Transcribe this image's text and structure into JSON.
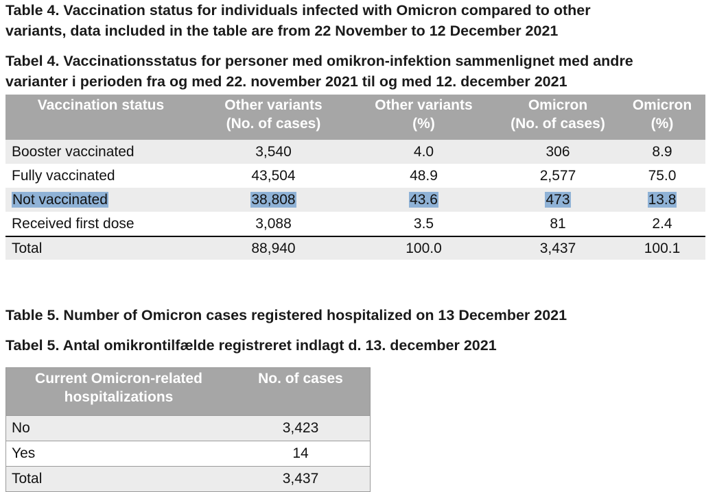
{
  "table4": {
    "title_en": "Table 4. Vaccination status for individuals infected with Omicron compared to other",
    "title_en_line2": "variants, data included in the table are from 22 November to 12 December 2021",
    "title_da": "Tabel 4. Vaccinationsstatus for personer med omikron-infektion sammenlignet med andre",
    "title_da_line2": "varianter i perioden fra og med 22. november 2021 til og med 12. december 2021",
    "headers": [
      [
        "Vaccination status",
        ""
      ],
      [
        "Other variants",
        "(No. of cases)"
      ],
      [
        "Other variants",
        "(%)"
      ],
      [
        "Omicron",
        "(No. of cases)"
      ],
      [
        "Omicron",
        "(%)"
      ]
    ],
    "rows": [
      [
        "Booster vaccinated",
        "3,540",
        "4.0",
        "306",
        "8.9"
      ],
      [
        "Fully vaccinated",
        "43,504",
        "48.9",
        "2,577",
        "75.0"
      ],
      [
        "Not vaccinated",
        "38,808",
        "43.6",
        "473",
        "13.8"
      ],
      [
        "Received first dose",
        "3,088",
        "3.5",
        "81",
        "2.4"
      ]
    ],
    "total": [
      "Total",
      "88,940",
      "100.0",
      "3,437",
      "100.1"
    ],
    "highlight_color": "#8fb2d6",
    "header_color": "#a6a6a6"
  },
  "table5": {
    "title_en": "Table 5. Number of Omicron cases registered hospitalized on 13 December 2021",
    "title_da": "Tabel 5. Antal omikrontilfælde registreret indlagt d. 13. december 2021",
    "headers": [
      [
        "Current Omicron-related",
        "hospitalizations"
      ],
      [
        "No. of cases",
        ""
      ]
    ],
    "rows": [
      [
        "No",
        "3,423"
      ],
      [
        "Yes",
        "14"
      ],
      [
        "Total",
        "3,437"
      ]
    ]
  }
}
